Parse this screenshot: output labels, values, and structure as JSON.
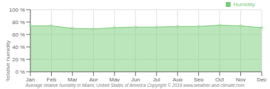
{
  "chart_data": {
    "type": "area",
    "categories": [
      "Jan",
      "Feb",
      "Mar",
      "Apr",
      "May",
      "Jun",
      "Jul",
      "Aug",
      "Sep",
      "Oct",
      "Nov",
      "Dec"
    ],
    "series": [
      {
        "name": "Humidity",
        "color": "#77cc77",
        "values": [
          74,
          74,
          70,
          69,
          71,
          72,
          72,
          73,
          73,
          75,
          74,
          71
        ]
      }
    ],
    "ylabel": "Relative humidity",
    "ylim": [
      0,
      100
    ],
    "yticks": [
      {
        "value": 0,
        "label": "0 %"
      },
      {
        "value": 20,
        "label": "20 %"
      },
      {
        "value": 40,
        "label": "40 %"
      },
      {
        "value": 60,
        "label": "60 %"
      },
      {
        "value": 80,
        "label": "80 %"
      },
      {
        "value": 100,
        "label": "100 %"
      }
    ],
    "grid": true,
    "legend": "upper right",
    "marker": "circle",
    "annotations": [
      "Average relative humidity in Miami, United States of America   Copyright © 2019 www.weather-and-climate.com"
    ]
  }
}
